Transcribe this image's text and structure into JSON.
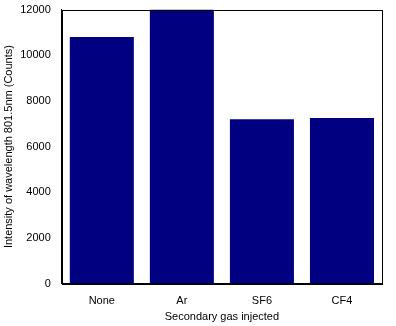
{
  "chart_data": {
    "type": "bar",
    "x_label": "Secondary gas injected",
    "y_label": "Intensity of wavelength 801.5nm (Counts)",
    "categories": [
      "None",
      "Ar",
      "SF6",
      "CF4"
    ],
    "values": [
      10800,
      12000,
      7200,
      7250
    ],
    "color": "#000080",
    "ylim": [
      0,
      12000
    ],
    "yticks": [
      0,
      2000,
      4000,
      6000,
      8000,
      10000,
      12000
    ],
    "grid": false
  }
}
